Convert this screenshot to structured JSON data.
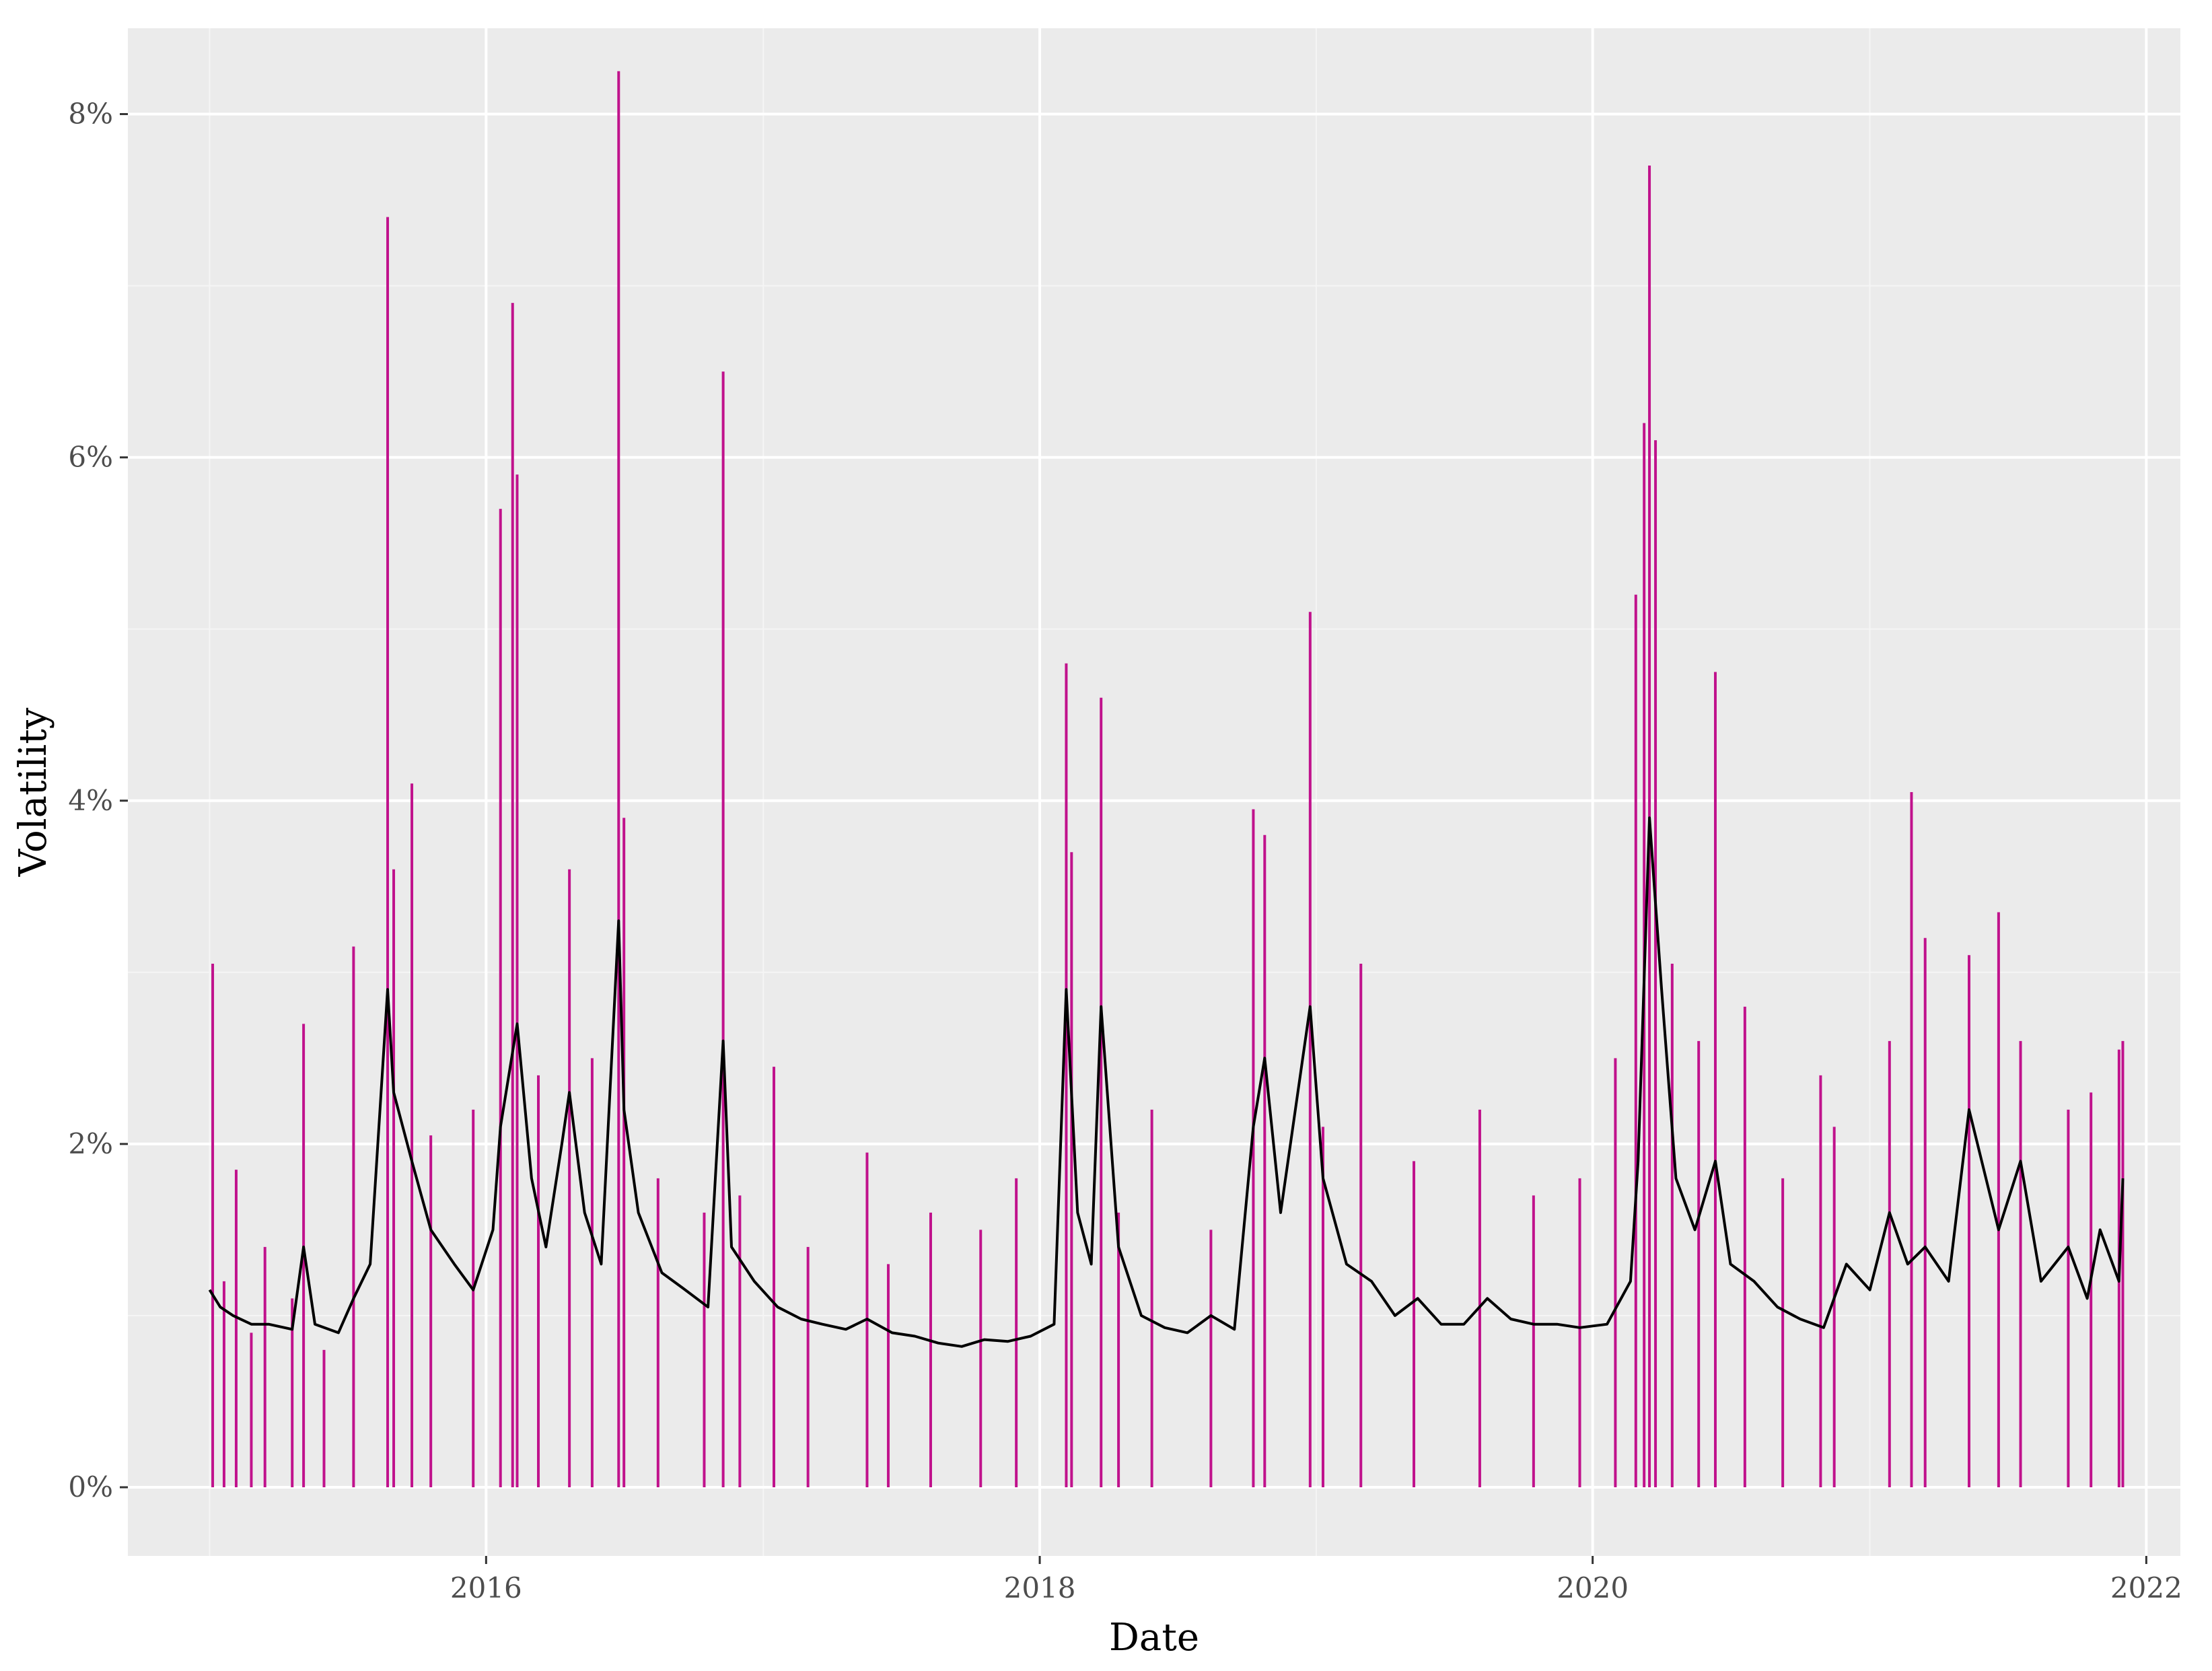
{
  "chart_data": {
    "type": "line",
    "title": "",
    "xlabel": "Date",
    "ylabel": "Volatility",
    "x_tick_labels": [
      "2016",
      "2018",
      "2020",
      "2022"
    ],
    "x_ticks": [
      "2016-01-01",
      "2018-01-01",
      "2020-01-01",
      "2022-01-01"
    ],
    "y_tick_labels": [
      "0%",
      "2%",
      "4%",
      "6%",
      "8%"
    ],
    "y_ticks": [
      0,
      2,
      4,
      6,
      8
    ],
    "xlim": [
      "2014-09-15",
      "2022-02-15"
    ],
    "ylim": [
      -0.4,
      8.5
    ],
    "grid": true,
    "legend": "none",
    "series": [
      {
        "role": "realized-volatility",
        "color": "#c0128c",
        "style": "vertical-spikes",
        "x": [
          "2015-01-05",
          "2015-01-20",
          "2015-02-05",
          "2015-02-25",
          "2015-03-15",
          "2015-04-20",
          "2015-05-05",
          "2015-06-01",
          "2015-07-10",
          "2015-08-24",
          "2015-09-01",
          "2015-09-25",
          "2015-10-20",
          "2015-12-15",
          "2016-01-20",
          "2016-02-05",
          "2016-02-11",
          "2016-03-10",
          "2016-04-20",
          "2016-05-20",
          "2016-06-24",
          "2016-07-01",
          "2016-08-15",
          "2016-10-15",
          "2016-11-09",
          "2016-12-01",
          "2017-01-15",
          "2017-03-01",
          "2017-05-18",
          "2017-06-15",
          "2017-08-10",
          "2017-10-15",
          "2017-12-01",
          "2018-02-05",
          "2018-02-12",
          "2018-03-23",
          "2018-04-15",
          "2018-05-29",
          "2018-08-15",
          "2018-10-10",
          "2018-10-25",
          "2018-12-24",
          "2019-01-10",
          "2019-03-01",
          "2019-05-10",
          "2019-08-05",
          "2019-10-15",
          "2019-12-15",
          "2020-01-31",
          "2020-02-27",
          "2020-03-09",
          "2020-03-16",
          "2020-03-24",
          "2020-04-15",
          "2020-05-20",
          "2020-06-11",
          "2020-07-20",
          "2020-09-08",
          "2020-10-28",
          "2020-11-15",
          "2021-01-27",
          "2021-02-25",
          "2021-03-15",
          "2021-05-12",
          "2021-06-20",
          "2021-07-19",
          "2021-09-20",
          "2021-10-20",
          "2021-11-26",
          "2021-12-01"
        ],
        "values": [
          3.05,
          1.2,
          1.85,
          0.9,
          1.4,
          1.1,
          2.7,
          0.8,
          3.15,
          7.4,
          3.6,
          4.1,
          2.05,
          2.2,
          5.7,
          6.9,
          5.9,
          2.4,
          3.6,
          2.5,
          8.25,
          3.9,
          1.8,
          1.6,
          6.5,
          1.7,
          2.45,
          1.4,
          1.95,
          1.3,
          1.6,
          1.5,
          1.8,
          4.8,
          3.7,
          4.6,
          1.6,
          2.2,
          1.5,
          3.95,
          3.8,
          5.1,
          2.1,
          3.05,
          1.9,
          2.2,
          1.7,
          1.8,
          2.5,
          5.2,
          6.2,
          7.7,
          6.1,
          3.05,
          2.6,
          4.75,
          2.8,
          1.8,
          2.4,
          2.1,
          2.6,
          4.05,
          3.2,
          3.1,
          3.35,
          2.6,
          2.2,
          2.3,
          2.55,
          2.6
        ]
      },
      {
        "role": "conditional-volatility",
        "color": "#000000",
        "style": "line",
        "x": [
          "2015-01-01",
          "2015-01-15",
          "2015-02-01",
          "2015-02-25",
          "2015-03-20",
          "2015-04-20",
          "2015-05-05",
          "2015-05-20",
          "2015-06-20",
          "2015-07-10",
          "2015-08-01",
          "2015-08-24",
          "2015-09-01",
          "2015-09-25",
          "2015-10-20",
          "2015-11-20",
          "2015-12-15",
          "2016-01-10",
          "2016-01-20",
          "2016-02-11",
          "2016-03-01",
          "2016-03-20",
          "2016-04-10",
          "2016-04-20",
          "2016-05-10",
          "2016-06-01",
          "2016-06-24",
          "2016-07-01",
          "2016-07-20",
          "2016-08-20",
          "2016-09-20",
          "2016-10-20",
          "2016-11-09",
          "2016-11-20",
          "2016-12-20",
          "2017-01-20",
          "2017-02-20",
          "2017-03-20",
          "2017-04-20",
          "2017-05-18",
          "2017-06-20",
          "2017-07-20",
          "2017-08-20",
          "2017-09-20",
          "2017-10-20",
          "2017-11-20",
          "2017-12-20",
          "2018-01-20",
          "2018-02-05",
          "2018-02-20",
          "2018-03-10",
          "2018-03-23",
          "2018-04-15",
          "2018-05-15",
          "2018-06-15",
          "2018-07-15",
          "2018-08-15",
          "2018-09-15",
          "2018-10-10",
          "2018-10-25",
          "2018-11-15",
          "2018-12-24",
          "2019-01-10",
          "2019-02-10",
          "2019-03-15",
          "2019-04-15",
          "2019-05-15",
          "2019-06-15",
          "2019-07-15",
          "2019-08-15",
          "2019-09-15",
          "2019-10-15",
          "2019-11-15",
          "2019-12-15",
          "2020-01-20",
          "2020-02-20",
          "2020-03-01",
          "2020-03-16",
          "2020-04-01",
          "2020-04-20",
          "2020-05-15",
          "2020-06-11",
          "2020-07-01",
          "2020-08-01",
          "2020-09-01",
          "2020-10-01",
          "2020-11-01",
          "2020-12-01",
          "2021-01-01",
          "2021-01-27",
          "2021-02-20",
          "2021-03-15",
          "2021-04-15",
          "2021-05-12",
          "2021-06-20",
          "2021-07-19",
          "2021-08-15",
          "2021-09-20",
          "2021-10-15",
          "2021-11-01",
          "2021-11-26",
          "2021-12-01"
        ],
        "values": [
          1.15,
          1.05,
          1.0,
          0.95,
          0.95,
          0.92,
          1.4,
          0.95,
          0.9,
          1.1,
          1.3,
          2.9,
          2.3,
          1.9,
          1.5,
          1.3,
          1.15,
          1.5,
          2.1,
          2.7,
          1.8,
          1.4,
          2.0,
          2.3,
          1.6,
          1.3,
          3.3,
          2.2,
          1.6,
          1.25,
          1.15,
          1.05,
          2.6,
          1.4,
          1.2,
          1.05,
          0.98,
          0.95,
          0.92,
          0.98,
          0.9,
          0.88,
          0.84,
          0.82,
          0.86,
          0.85,
          0.88,
          0.95,
          2.9,
          1.6,
          1.3,
          2.8,
          1.4,
          1.0,
          0.93,
          0.9,
          1.0,
          0.92,
          2.1,
          2.5,
          1.6,
          2.8,
          1.8,
          1.3,
          1.2,
          1.0,
          1.1,
          0.95,
          0.95,
          1.1,
          0.98,
          0.95,
          0.95,
          0.93,
          0.95,
          1.2,
          1.9,
          3.9,
          2.9,
          1.8,
          1.5,
          1.9,
          1.3,
          1.2,
          1.05,
          0.98,
          0.93,
          1.3,
          1.15,
          1.6,
          1.3,
          1.4,
          1.2,
          2.2,
          1.5,
          1.9,
          1.2,
          1.4,
          1.1,
          1.5,
          1.2,
          1.8
        ]
      }
    ]
  },
  "colors": {
    "panel_background": "#ebebeb",
    "grid_major": "#ffffff",
    "grid_minor": "#f5f5f5",
    "realized_volatility": "#c0128c",
    "conditional_volatility": "#000000"
  }
}
